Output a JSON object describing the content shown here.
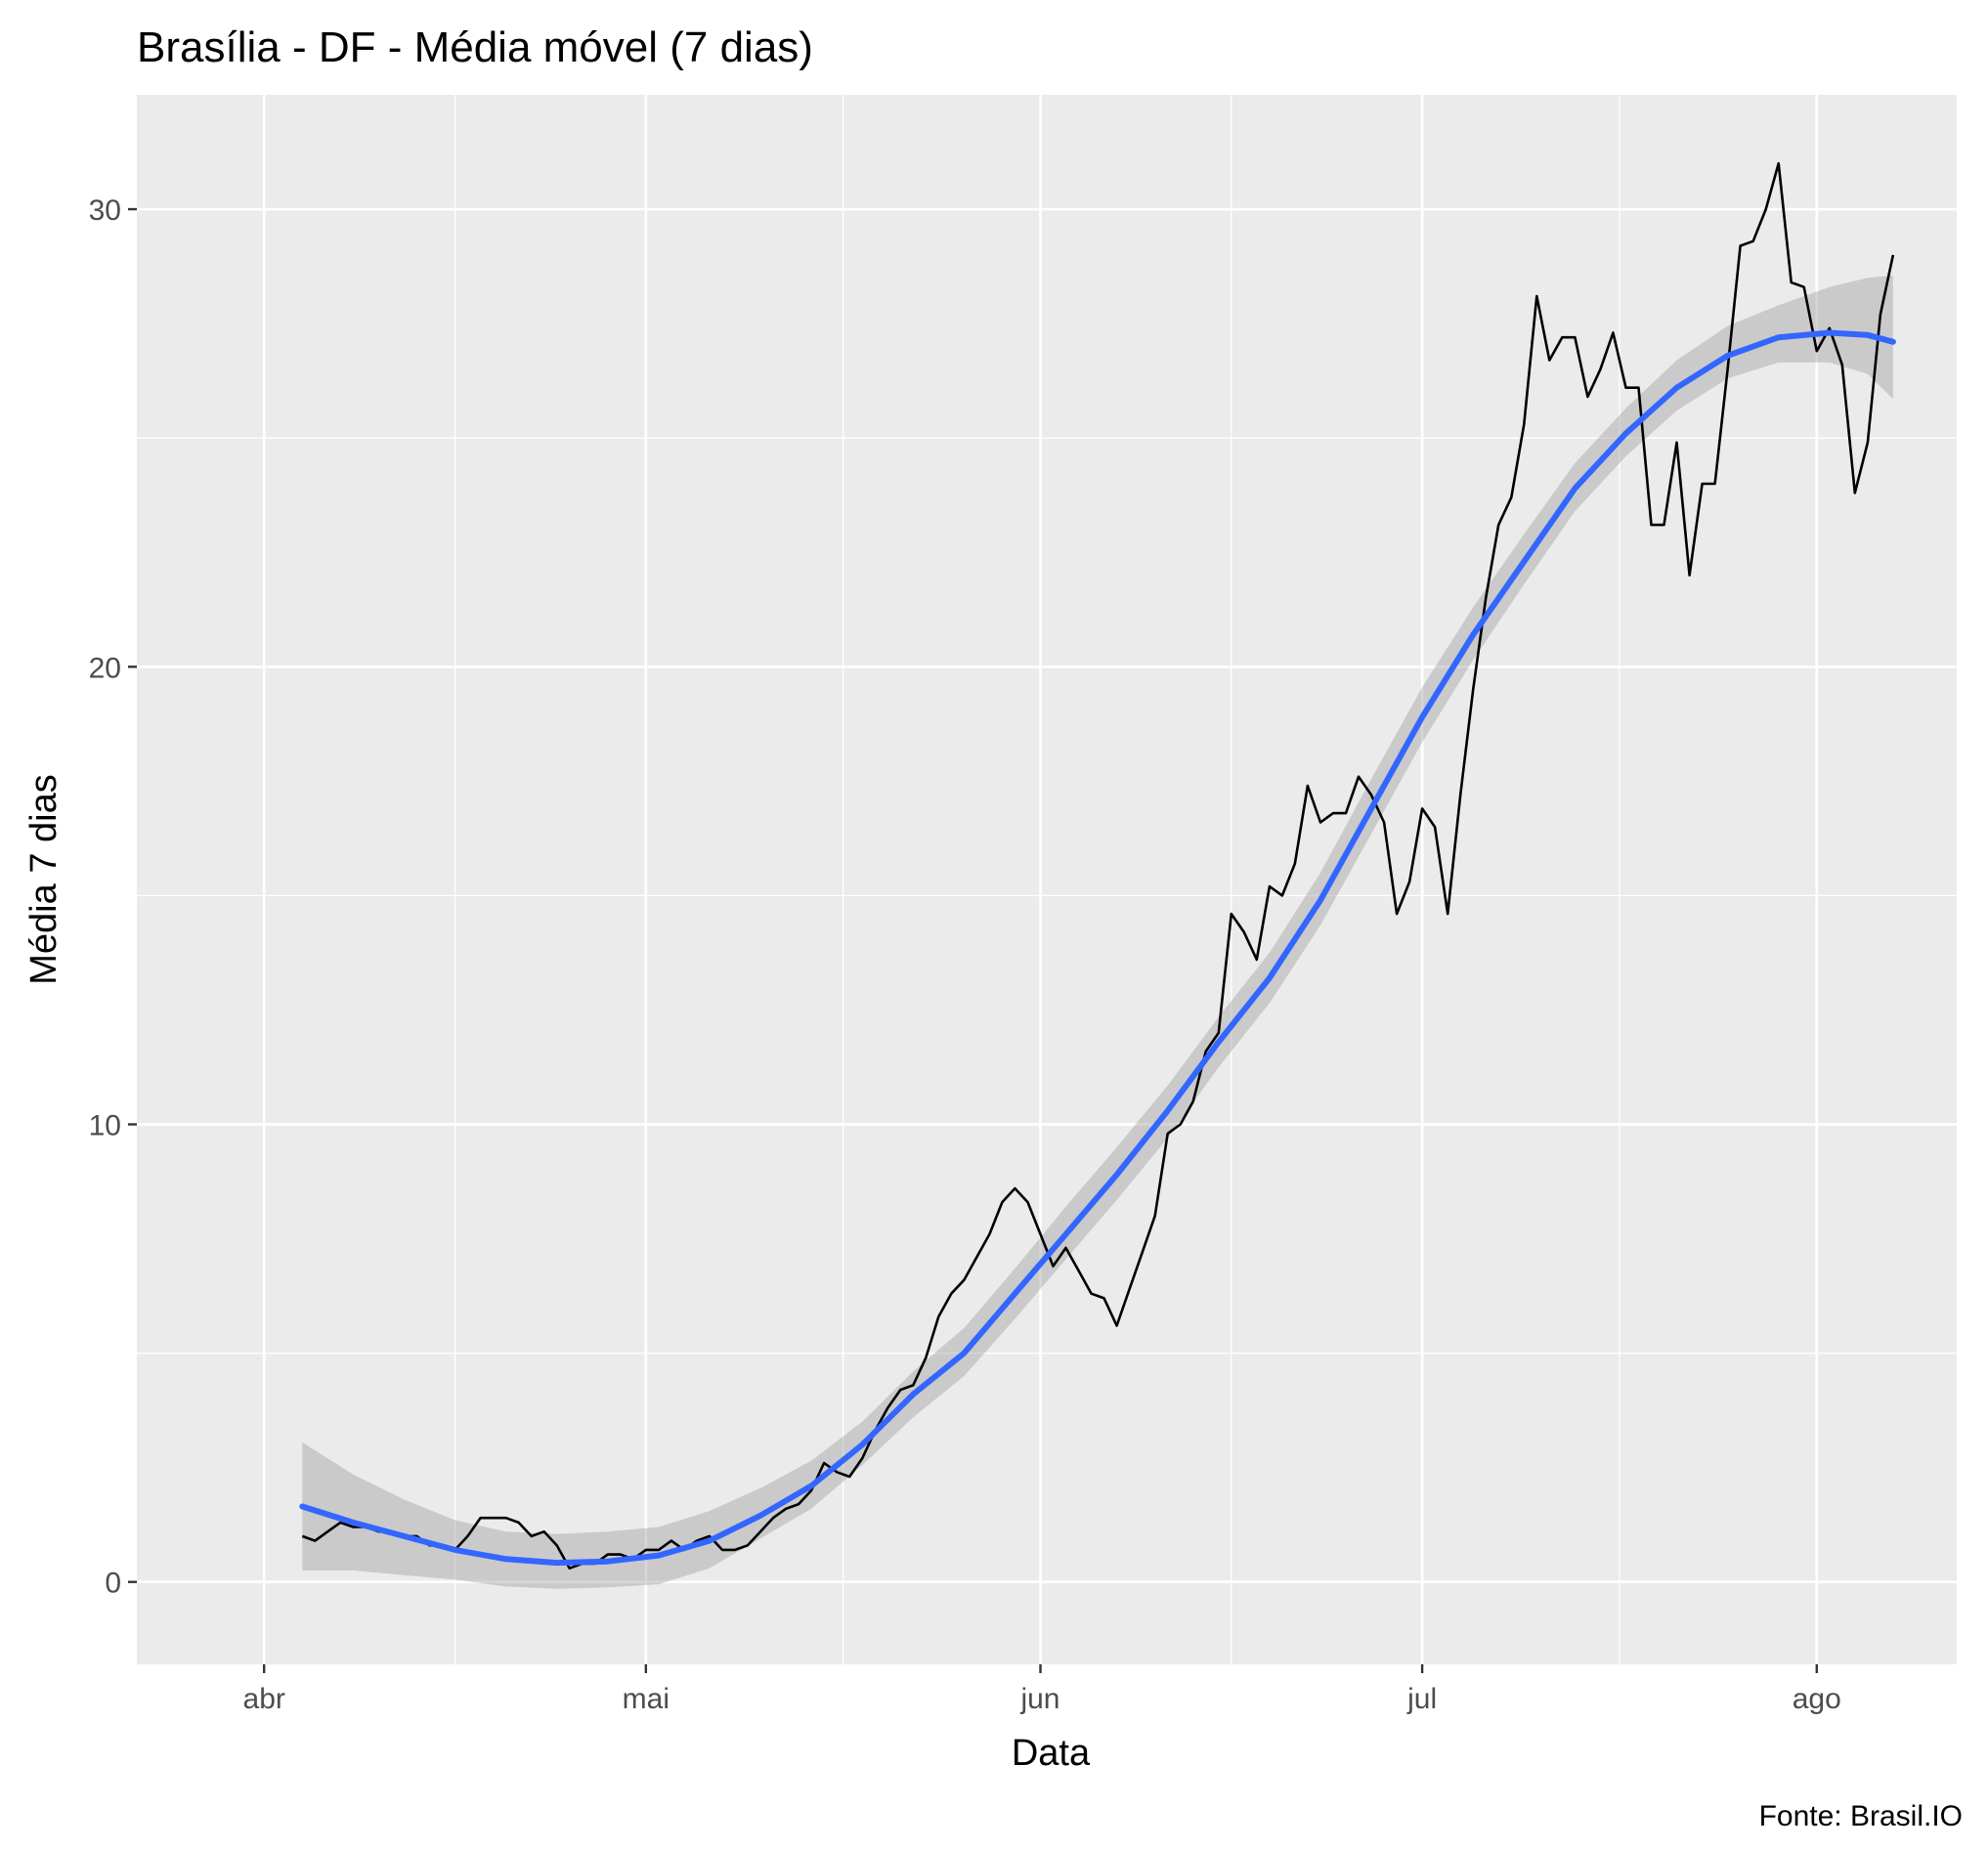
{
  "chart_data": {
    "type": "line",
    "title": "Brasília - DF - Média móvel (7 dias)",
    "xlabel": "Data",
    "ylabel": "Média 7 dias",
    "caption": "Fonte: Brasil.IO",
    "x_ticks": [
      {
        "label": "abr",
        "date": "2020-04-01"
      },
      {
        "label": "mai",
        "date": "2020-05-01"
      },
      {
        "label": "jun",
        "date": "2020-06-01"
      },
      {
        "label": "jul",
        "date": "2020-07-01"
      },
      {
        "label": "ago",
        "date": "2020-08-01"
      }
    ],
    "y_ticks": [
      0,
      10,
      20,
      30
    ],
    "xlim": [
      "2020-03-22",
      "2020-08-12"
    ],
    "ylim": [
      -1.8,
      32.5
    ],
    "grid": true,
    "panel_background": "#ebebeb",
    "series": [
      {
        "kind": "observed",
        "color": "#000000",
        "points": [
          [
            "2020-04-04",
            1.0
          ],
          [
            "2020-04-05",
            0.9
          ],
          [
            "2020-04-06",
            1.1
          ],
          [
            "2020-04-07",
            1.3
          ],
          [
            "2020-04-08",
            1.2
          ],
          [
            "2020-04-09",
            1.2
          ],
          [
            "2020-04-10",
            1.1
          ],
          [
            "2020-04-11",
            1.1
          ],
          [
            "2020-04-12",
            1.0
          ],
          [
            "2020-04-13",
            1.0
          ],
          [
            "2020-04-14",
            0.8
          ],
          [
            "2020-04-15",
            0.8
          ],
          [
            "2020-04-16",
            0.7
          ],
          [
            "2020-04-17",
            1.0
          ],
          [
            "2020-04-18",
            1.4
          ],
          [
            "2020-04-19",
            1.4
          ],
          [
            "2020-04-20",
            1.4
          ],
          [
            "2020-04-21",
            1.3
          ],
          [
            "2020-04-22",
            1.0
          ],
          [
            "2020-04-23",
            1.1
          ],
          [
            "2020-04-24",
            0.8
          ],
          [
            "2020-04-25",
            0.3
          ],
          [
            "2020-04-26",
            0.4
          ],
          [
            "2020-04-27",
            0.4
          ],
          [
            "2020-04-28",
            0.6
          ],
          [
            "2020-04-29",
            0.6
          ],
          [
            "2020-04-30",
            0.5
          ],
          [
            "2020-05-01",
            0.7
          ],
          [
            "2020-05-02",
            0.7
          ],
          [
            "2020-05-03",
            0.9
          ],
          [
            "2020-05-04",
            0.7
          ],
          [
            "2020-05-05",
            0.9
          ],
          [
            "2020-05-06",
            1.0
          ],
          [
            "2020-05-07",
            0.7
          ],
          [
            "2020-05-08",
            0.7
          ],
          [
            "2020-05-09",
            0.8
          ],
          [
            "2020-05-10",
            1.1
          ],
          [
            "2020-05-11",
            1.4
          ],
          [
            "2020-05-12",
            1.6
          ],
          [
            "2020-05-13",
            1.7
          ],
          [
            "2020-05-14",
            2.0
          ],
          [
            "2020-05-15",
            2.6
          ],
          [
            "2020-05-16",
            2.4
          ],
          [
            "2020-05-17",
            2.3
          ],
          [
            "2020-05-18",
            2.7
          ],
          [
            "2020-05-19",
            3.3
          ],
          [
            "2020-05-20",
            3.8
          ],
          [
            "2020-05-21",
            4.2
          ],
          [
            "2020-05-22",
            4.3
          ],
          [
            "2020-05-23",
            4.9
          ],
          [
            "2020-05-24",
            5.8
          ],
          [
            "2020-05-25",
            6.3
          ],
          [
            "2020-05-26",
            6.6
          ],
          [
            "2020-05-27",
            7.1
          ],
          [
            "2020-05-28",
            7.6
          ],
          [
            "2020-05-29",
            8.3
          ],
          [
            "2020-05-30",
            8.6
          ],
          [
            "2020-05-31",
            8.3
          ],
          [
            "2020-06-01",
            7.6
          ],
          [
            "2020-06-02",
            6.9
          ],
          [
            "2020-06-03",
            7.3
          ],
          [
            "2020-06-04",
            6.8
          ],
          [
            "2020-06-05",
            6.3
          ],
          [
            "2020-06-06",
            6.2
          ],
          [
            "2020-06-07",
            5.6
          ],
          [
            "2020-06-08",
            6.4
          ],
          [
            "2020-06-09",
            7.2
          ],
          [
            "2020-06-10",
            8.0
          ],
          [
            "2020-06-11",
            9.8
          ],
          [
            "2020-06-12",
            10.0
          ],
          [
            "2020-06-13",
            10.5
          ],
          [
            "2020-06-14",
            11.6
          ],
          [
            "2020-06-15",
            12.0
          ],
          [
            "2020-06-16",
            14.6
          ],
          [
            "2020-06-17",
            14.2
          ],
          [
            "2020-06-18",
            13.6
          ],
          [
            "2020-06-19",
            15.2
          ],
          [
            "2020-06-20",
            15.0
          ],
          [
            "2020-06-21",
            15.7
          ],
          [
            "2020-06-22",
            17.4
          ],
          [
            "2020-06-23",
            16.6
          ],
          [
            "2020-06-24",
            16.8
          ],
          [
            "2020-06-25",
            16.8
          ],
          [
            "2020-06-26",
            17.6
          ],
          [
            "2020-06-27",
            17.2
          ],
          [
            "2020-06-28",
            16.6
          ],
          [
            "2020-06-29",
            14.6
          ],
          [
            "2020-06-30",
            15.3
          ],
          [
            "2020-07-01",
            16.9
          ],
          [
            "2020-07-02",
            16.5
          ],
          [
            "2020-07-03",
            14.6
          ],
          [
            "2020-07-04",
            17.2
          ],
          [
            "2020-07-05",
            19.5
          ],
          [
            "2020-07-06",
            21.5
          ],
          [
            "2020-07-07",
            23.1
          ],
          [
            "2020-07-08",
            23.7
          ],
          [
            "2020-07-09",
            25.3
          ],
          [
            "2020-07-10",
            28.1
          ],
          [
            "2020-07-11",
            26.7
          ],
          [
            "2020-07-12",
            27.2
          ],
          [
            "2020-07-13",
            27.2
          ],
          [
            "2020-07-14",
            25.9
          ],
          [
            "2020-07-15",
            26.5
          ],
          [
            "2020-07-16",
            27.3
          ],
          [
            "2020-07-17",
            26.1
          ],
          [
            "2020-07-18",
            26.1
          ],
          [
            "2020-07-19",
            23.1
          ],
          [
            "2020-07-20",
            23.1
          ],
          [
            "2020-07-21",
            24.9
          ],
          [
            "2020-07-22",
            22.0
          ],
          [
            "2020-07-23",
            24.0
          ],
          [
            "2020-07-24",
            24.0
          ],
          [
            "2020-07-25",
            26.5
          ],
          [
            "2020-07-26",
            29.2
          ],
          [
            "2020-07-27",
            29.3
          ],
          [
            "2020-07-28",
            30.0
          ],
          [
            "2020-07-29",
            31.0
          ],
          [
            "2020-07-30",
            28.4
          ],
          [
            "2020-07-31",
            28.3
          ],
          [
            "2020-08-01",
            26.9
          ],
          [
            "2020-08-02",
            27.4
          ],
          [
            "2020-08-03",
            26.6
          ],
          [
            "2020-08-04",
            23.8
          ],
          [
            "2020-08-05",
            24.9
          ],
          [
            "2020-08-06",
            27.7
          ],
          [
            "2020-08-07",
            29.0
          ]
        ]
      },
      {
        "kind": "smooth",
        "color": "#3366ff",
        "band_color": "#999999",
        "points": [
          [
            "2020-04-04",
            1.65,
            0.25,
            3.05
          ],
          [
            "2020-04-08",
            1.3,
            0.25,
            2.35
          ],
          [
            "2020-04-12",
            1.0,
            0.15,
            1.8
          ],
          [
            "2020-04-16",
            0.7,
            0.05,
            1.35
          ],
          [
            "2020-04-20",
            0.5,
            -0.1,
            1.1
          ],
          [
            "2020-04-24",
            0.42,
            -0.15,
            1.05
          ],
          [
            "2020-04-28",
            0.45,
            -0.12,
            1.1
          ],
          [
            "2020-05-02",
            0.58,
            -0.05,
            1.2
          ],
          [
            "2020-05-06",
            0.9,
            0.3,
            1.55
          ],
          [
            "2020-05-10",
            1.45,
            0.95,
            2.05
          ],
          [
            "2020-05-14",
            2.1,
            1.6,
            2.65
          ],
          [
            "2020-05-18",
            3.0,
            2.55,
            3.5
          ],
          [
            "2020-05-22",
            4.1,
            3.6,
            4.6
          ],
          [
            "2020-05-26",
            5.0,
            4.5,
            5.55
          ],
          [
            "2020-05-30",
            6.3,
            5.75,
            6.85
          ],
          [
            "2020-06-03",
            7.6,
            7.05,
            8.2
          ],
          [
            "2020-06-07",
            8.9,
            8.35,
            9.5
          ],
          [
            "2020-06-11",
            10.3,
            9.7,
            10.85
          ],
          [
            "2020-06-15",
            11.8,
            11.25,
            12.35
          ],
          [
            "2020-06-19",
            13.2,
            12.65,
            13.75
          ],
          [
            "2020-06-23",
            14.9,
            14.35,
            15.5
          ],
          [
            "2020-06-27",
            16.9,
            16.35,
            17.55
          ],
          [
            "2020-07-01",
            18.9,
            18.35,
            19.55
          ],
          [
            "2020-07-05",
            20.7,
            20.15,
            21.3
          ],
          [
            "2020-07-09",
            22.3,
            21.8,
            22.9
          ],
          [
            "2020-07-13",
            23.9,
            23.4,
            24.45
          ],
          [
            "2020-07-17",
            25.1,
            24.6,
            25.65
          ],
          [
            "2020-07-21",
            26.1,
            25.6,
            26.7
          ],
          [
            "2020-07-25",
            26.8,
            26.3,
            27.45
          ],
          [
            "2020-07-29",
            27.2,
            26.65,
            27.9
          ],
          [
            "2020-08-02",
            27.3,
            26.65,
            28.3
          ],
          [
            "2020-08-05",
            27.25,
            26.4,
            28.5
          ],
          [
            "2020-08-07",
            27.1,
            25.85,
            28.55
          ]
        ]
      }
    ]
  }
}
